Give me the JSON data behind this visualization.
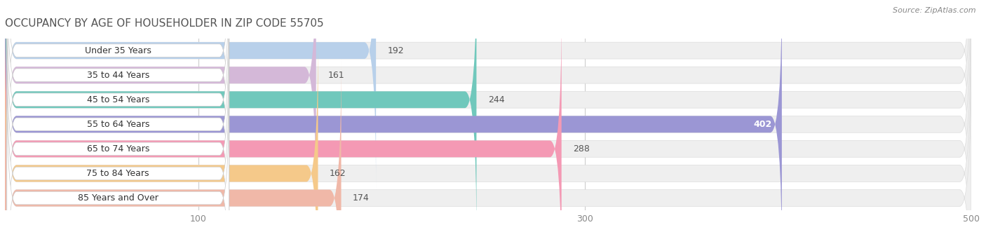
{
  "title": "OCCUPANCY BY AGE OF HOUSEHOLDER IN ZIP CODE 55705",
  "source": "Source: ZipAtlas.com",
  "categories": [
    "Under 35 Years",
    "35 to 44 Years",
    "45 to 54 Years",
    "55 to 64 Years",
    "65 to 74 Years",
    "75 to 84 Years",
    "85 Years and Over"
  ],
  "values": [
    192,
    161,
    244,
    402,
    288,
    162,
    174
  ],
  "bar_colors": [
    "#b8d0ea",
    "#d4b8d8",
    "#70c8bc",
    "#9b96d4",
    "#f499b4",
    "#f5c98a",
    "#f0b8a8"
  ],
  "xlim": [
    0,
    500
  ],
  "xticks": [
    100,
    300,
    500
  ],
  "bar_height": 0.68,
  "background_color": "#ffffff",
  "bar_bg_color": "#efefef",
  "label_pill_color": "#ffffff",
  "label_fontsize": 9.0,
  "value_fontsize": 9.0,
  "title_fontsize": 11.0
}
